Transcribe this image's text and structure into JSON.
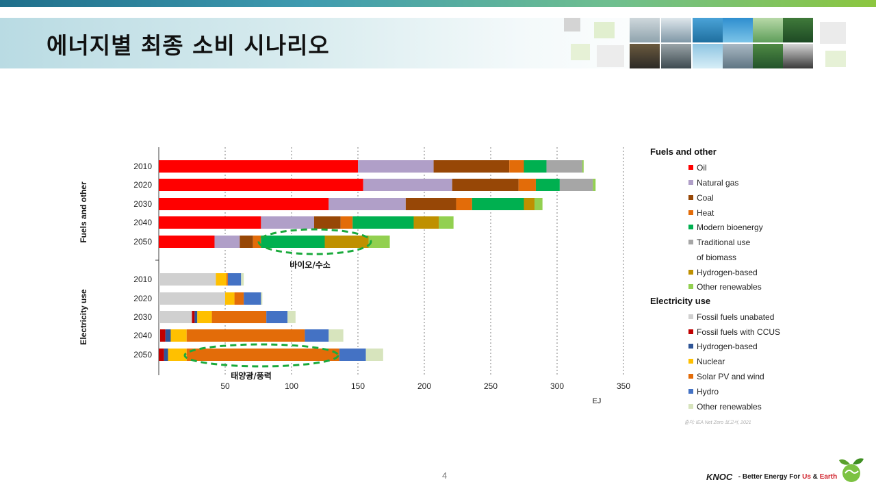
{
  "slide": {
    "title": "에너지별 최종 소비 시나리오",
    "page_number": "4",
    "source": "출처: IEA Net Zero 보고서, 2021"
  },
  "footer": {
    "logo_text": "KNOC",
    "slogan_prefix": "Better Energy For",
    "slogan_us": "Us",
    "slogan_amp": "&",
    "slogan_earth": "Earth"
  },
  "colors": {
    "oil": "#ff0000",
    "natural_gas": "#b09fc8",
    "coal": "#974706",
    "heat": "#e36c09",
    "modern_bioenergy": "#00b050",
    "traditional_biomass": "#a6a6a6",
    "hydrogen_fuel": "#bf9000",
    "other_renewables_fuel": "#92d050",
    "fossil_unabated": "#d0d0d0",
    "fossil_ccus": "#c00000",
    "hydrogen_elec": "#2f5597",
    "nuclear": "#ffc000",
    "solar_wind": "#e36c09",
    "hydro": "#4472c4",
    "other_renewables_elec": "#d7e4bd",
    "highlight": "#1aaa3c"
  },
  "chart_data": {
    "type": "bar",
    "orientation": "horizontal",
    "stacked": true,
    "xlabel": "EJ",
    "xlim": [
      0,
      350
    ],
    "xticks": [
      50,
      100,
      150,
      200,
      250,
      300,
      350
    ],
    "grid": "vertical dotted",
    "groups": [
      {
        "name": "Fuels and other",
        "categories": [
          "2010",
          "2020",
          "2030",
          "2040",
          "2050"
        ],
        "series": [
          {
            "name": "Oil",
            "values": [
              150,
              154,
              128,
              77,
              42
            ]
          },
          {
            "name": "Natural gas",
            "values": [
              57,
              67,
              58,
              40,
              19
            ]
          },
          {
            "name": "Coal",
            "values": [
              57,
              50,
              38,
              20,
              10
            ]
          },
          {
            "name": "Heat",
            "values": [
              11,
              13,
              12,
              9,
              6
            ]
          },
          {
            "name": "Modern bioenergy",
            "values": [
              17,
              18,
              39,
              46,
              48
            ]
          },
          {
            "name": "Traditional use of biomass",
            "values": [
              27,
              25,
              0,
              0,
              0
            ]
          },
          {
            "name": "Hydrogen-based",
            "values": [
              0,
              0,
              8,
              19,
              33
            ]
          },
          {
            "name": "Other renewables",
            "values": [
              1,
              2,
              6,
              11,
              16
            ]
          }
        ],
        "annotation": "바이오/수소"
      },
      {
        "name": "Electricity use",
        "categories": [
          "2010",
          "2020",
          "2030",
          "2040",
          "2050"
        ],
        "series": [
          {
            "name": "Fossil fuels unabated",
            "values": [
              43,
              50,
              25,
              1,
              0
            ]
          },
          {
            "name": "Fossil fuels with CCUS",
            "values": [
              0,
              0,
              2,
              4,
              4
            ]
          },
          {
            "name": "Hydrogen-based",
            "values": [
              0,
              0,
              2,
              4,
              3
            ]
          },
          {
            "name": "Nuclear",
            "values": [
              8,
              7,
              11,
              12,
              14
            ]
          },
          {
            "name": "Solar PV and wind",
            "values": [
              1,
              7,
              41,
              89,
              115
            ]
          },
          {
            "name": "Hydro",
            "values": [
              10,
              13,
              16,
              18,
              20
            ]
          },
          {
            "name": "Other renewables",
            "values": [
              2,
              1,
              6,
              11,
              13
            ]
          }
        ],
        "annotation": "태양광/풍력"
      }
    ]
  },
  "legend": {
    "fuels_heading": "Fuels and other",
    "fuels_items": [
      "Oil",
      "Natural gas",
      "Coal",
      "Heat",
      "Modern bioenergy",
      "Traditional use",
      "of biomass",
      "Hydrogen-based",
      "Other renewables"
    ],
    "elec_heading": "Electricity use",
    "elec_items": [
      "Fossil fuels unabated",
      "Fossil fuels with CCUS",
      "Hydrogen-based",
      "Nuclear",
      "Solar PV and wind",
      "Hydro",
      "Other renewables"
    ]
  }
}
